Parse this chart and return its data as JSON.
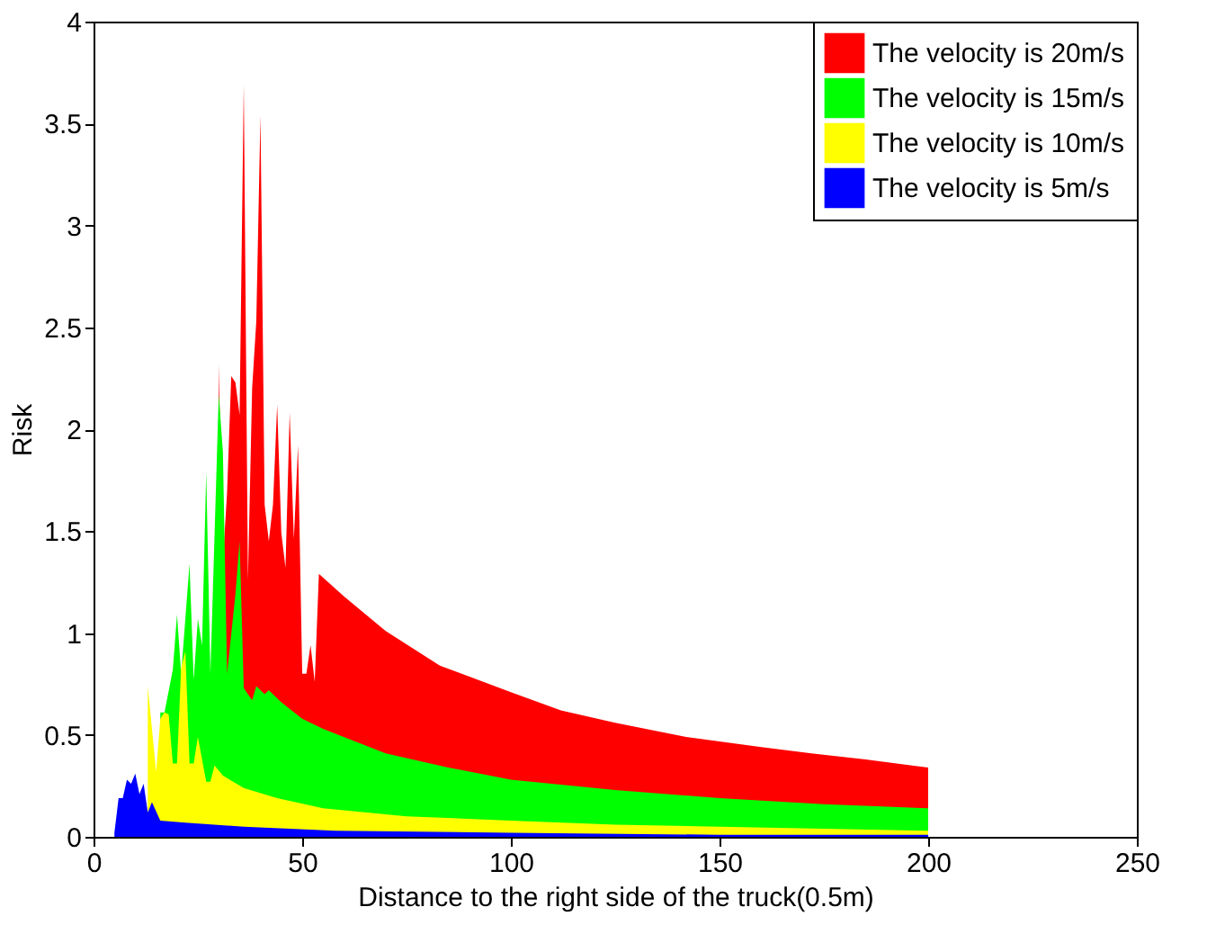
{
  "chart_data": {
    "type": "area",
    "xlabel": "Distance to the right side of the truck(0.5m)",
    "ylabel": "Risk",
    "xlim": [
      0,
      250
    ],
    "xticks": [
      0,
      50,
      100,
      150,
      200,
      250
    ],
    "ylim": [
      0,
      4
    ],
    "yticks": [
      0,
      0.5,
      1,
      1.5,
      2,
      2.5,
      3,
      3.5,
      4
    ],
    "grid": false,
    "legend": "top right",
    "series": [
      {
        "name": "The velocity is 20m/s",
        "color": "#ff0000",
        "x": [
          30,
          31,
          32,
          33,
          34,
          35,
          36,
          37,
          38,
          39,
          40,
          41,
          42,
          43,
          44,
          45,
          46,
          47,
          48,
          49,
          50,
          51,
          52,
          53,
          54,
          60,
          70,
          83,
          100,
          112,
          125,
          142,
          160,
          172,
          185,
          200
        ],
        "values": [
          2.32,
          1.35,
          1.69,
          2.26,
          2.23,
          2.07,
          3.69,
          1.26,
          2.2,
          2.53,
          3.54,
          1.63,
          1.45,
          1.63,
          2.12,
          1.49,
          1.32,
          2.08,
          1.46,
          1.92,
          0.8,
          0.8,
          0.94,
          0.76,
          1.29,
          1.18,
          1.01,
          0.84,
          0.71,
          0.62,
          0.56,
          0.49,
          0.44,
          0.41,
          0.38,
          0.34
        ]
      },
      {
        "name": "The velocity is 15m/s",
        "color": "#00ff00",
        "x": [
          16,
          17,
          19,
          20,
          21,
          23,
          24,
          25,
          26,
          27,
          28,
          30,
          31,
          32,
          34,
          35,
          36,
          38,
          39,
          41,
          42,
          45,
          50,
          55,
          70,
          85,
          100,
          125,
          150,
          175,
          200
        ],
        "values": [
          0.61,
          0.61,
          0.82,
          1.09,
          0.8,
          1.34,
          0.77,
          1.07,
          0.94,
          1.79,
          0.8,
          2.17,
          1.89,
          0.8,
          1.19,
          1.45,
          0.73,
          0.67,
          0.74,
          0.7,
          0.72,
          0.66,
          0.58,
          0.53,
          0.41,
          0.34,
          0.28,
          0.23,
          0.19,
          0.16,
          0.14
        ]
      },
      {
        "name": "The velocity is 10m/s",
        "color": "#ffff00",
        "x": [
          13,
          15,
          16,
          17,
          18,
          19,
          20,
          21,
          22,
          23,
          24,
          25,
          27,
          28,
          29,
          31,
          36,
          44,
          55,
          75,
          100,
          125,
          150,
          175,
          200
        ],
        "values": [
          0.74,
          0.32,
          0.58,
          0.61,
          0.6,
          0.36,
          0.36,
          0.83,
          0.91,
          0.36,
          0.36,
          0.49,
          0.27,
          0.27,
          0.35,
          0.3,
          0.24,
          0.19,
          0.14,
          0.1,
          0.08,
          0.06,
          0.05,
          0.04,
          0.03
        ]
      },
      {
        "name": "The velocity is 5m/s",
        "color": "#0000ff",
        "x": [
          5,
          6,
          7,
          8,
          9,
          10,
          11,
          12,
          13,
          14,
          16,
          22,
          36,
          58,
          100,
          150,
          200
        ],
        "values": [
          0.02,
          0.19,
          0.19,
          0.28,
          0.26,
          0.31,
          0.21,
          0.26,
          0.12,
          0.17,
          0.08,
          0.07,
          0.05,
          0.03,
          0.02,
          0.01,
          0.01
        ]
      }
    ]
  }
}
